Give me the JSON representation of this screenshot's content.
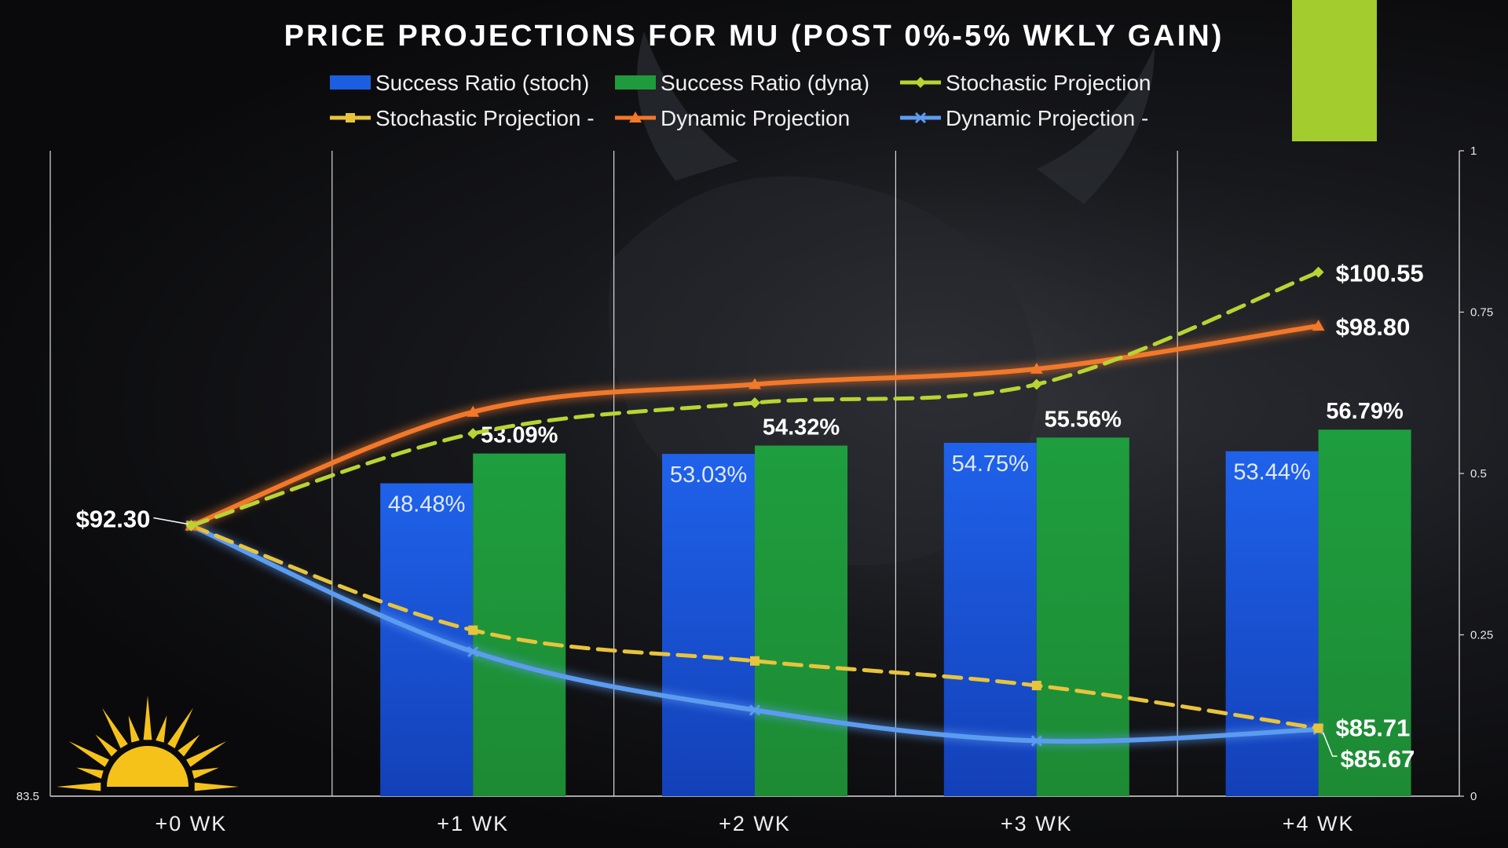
{
  "chart_data": {
    "title": "PRICE PROJECTIONS FOR MU (POST 0%-5% WKLY GAIN)",
    "type": "bar",
    "categories": [
      "+0 WK",
      "+1 WK",
      "+2 WK",
      "+3 WK",
      "+4 WK"
    ],
    "left_axis": {
      "min": 83.5,
      "max": 104.5,
      "ticks": [
        "83.5"
      ]
    },
    "right_axis": {
      "min": 0,
      "max": 1,
      "ticks": [
        "0",
        "0.25",
        "0.5",
        "0.75",
        "1"
      ]
    },
    "grid": "vertical",
    "legend": {
      "placement": "top",
      "entries": [
        "Success Ratio (stoch)",
        "Success Ratio (dyna)",
        "Stochastic Projection",
        "Stochastic Projection -",
        "Dynamic Projection",
        "Dynamic Projection -"
      ]
    },
    "bar_series": [
      {
        "name": "Success Ratio (stoch)",
        "axis": "right",
        "color": "#1c5ee0",
        "values": [
          null,
          0.4848,
          0.5303,
          0.5475,
          0.5344
        ],
        "labels": [
          "",
          "48.48%",
          "53.03%",
          "54.75%",
          "53.44%"
        ]
      },
      {
        "name": "Success Ratio (dyna)",
        "axis": "right",
        "color": "#1f9a3c",
        "values": [
          null,
          0.5309,
          0.5432,
          0.5556,
          0.5679
        ],
        "labels": [
          "",
          "53.09%",
          "54.32%",
          "55.56%",
          "56.79%"
        ]
      }
    ],
    "line_series": [
      {
        "name": "Stochastic Projection",
        "axis": "left",
        "color": "#b8d433",
        "dashed": true,
        "marker": "diamond",
        "values": [
          92.3,
          95.3,
          96.3,
          96.9,
          100.55
        ]
      },
      {
        "name": "Stochastic Projection -",
        "axis": "left",
        "color": "#e8c43c",
        "dashed": true,
        "marker": "square",
        "values": [
          92.3,
          88.9,
          87.9,
          87.1,
          85.71
        ]
      },
      {
        "name": "Dynamic Projection",
        "axis": "left",
        "color": "#f2782a",
        "dashed": false,
        "marker": "triangle",
        "values": [
          92.3,
          96.0,
          96.9,
          97.4,
          98.8
        ]
      },
      {
        "name": "Dynamic Projection -",
        "axis": "left",
        "color": "#5b9cf0",
        "dashed": false,
        "marker": "x",
        "values": [
          92.3,
          88.2,
          86.3,
          85.3,
          85.67
        ]
      }
    ],
    "data_labels": [
      {
        "text": "$92.30",
        "series": 0,
        "index": 0
      },
      {
        "text": "$100.55",
        "series": 0,
        "index": 4
      },
      {
        "text": "$98.80",
        "series": 2,
        "index": 4
      },
      {
        "text": "$85.71",
        "series": 1,
        "index": 4
      },
      {
        "text": "$85.67",
        "series": 3,
        "index": 4
      }
    ],
    "background_colors": {
      "bull_overlay_bar": "#a3cc2f",
      "sun": "#f5c21a"
    }
  }
}
